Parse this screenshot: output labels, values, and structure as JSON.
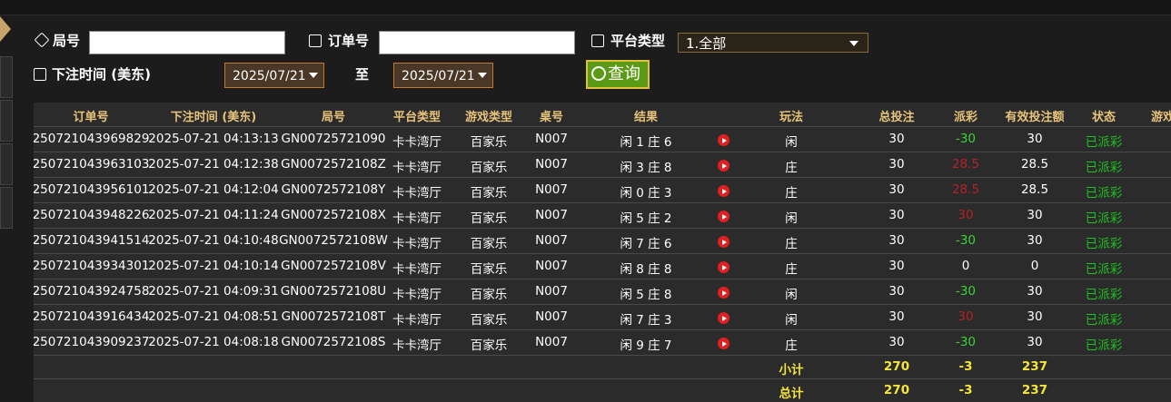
{
  "filters": {
    "round_label": "局号",
    "order_label": "订单号",
    "platform_label": "平台类型",
    "platform_value": "1.全部",
    "time_label": "下注时间 (美东)",
    "date_from": "2025/07/21",
    "to_label": "至",
    "date_to": "2025/07/21",
    "query_button": "查询"
  },
  "table": {
    "headers": [
      "订单号",
      "下注时间 (美东)",
      "局号",
      "平台类型",
      "游戏类型",
      "桌号",
      "结果",
      "玩法",
      "总投注",
      "派彩",
      "有效投注额",
      "状态",
      "游戏"
    ],
    "rows": [
      [
        "250721043969829",
        "2025-07-21 04:13:13",
        "GN00725721090",
        "卡卡湾厅",
        "百家乐",
        "N007",
        "闲 1 庄 6",
        "闲",
        "30",
        "-30",
        "30",
        "已派彩"
      ],
      [
        "250721043963103",
        "2025-07-21 04:12:38",
        "GN0072572108Z",
        "卡卡湾厅",
        "百家乐",
        "N007",
        "闲 3 庄 8",
        "庄",
        "30",
        "28.5",
        "28.5",
        "已派彩"
      ],
      [
        "250721043956101",
        "2025-07-21 04:12:04",
        "GN0072572108Y",
        "卡卡湾厅",
        "百家乐",
        "N007",
        "闲 0 庄 3",
        "庄",
        "30",
        "28.5",
        "28.5",
        "已派彩"
      ],
      [
        "250721043948226",
        "2025-07-21 04:11:24",
        "GN0072572108X",
        "卡卡湾厅",
        "百家乐",
        "N007",
        "闲 5 庄 2",
        "闲",
        "30",
        "30",
        "30",
        "已派彩"
      ],
      [
        "250721043941514",
        "2025-07-21 04:10:48",
        "GN0072572108W",
        "卡卡湾厅",
        "百家乐",
        "N007",
        "闲 7 庄 6",
        "庄",
        "30",
        "-30",
        "30",
        "已派彩"
      ],
      [
        "250721043934301",
        "2025-07-21 04:10:14",
        "GN0072572108V",
        "卡卡湾厅",
        "百家乐",
        "N007",
        "闲 8 庄 8",
        "庄",
        "30",
        "0",
        "0",
        "已派彩"
      ],
      [
        "250721043924758",
        "2025-07-21 04:09:31",
        "GN0072572108U",
        "卡卡湾厅",
        "百家乐",
        "N007",
        "闲 5 庄 8",
        "闲",
        "30",
        "-30",
        "30",
        "已派彩"
      ],
      [
        "250721043916434",
        "2025-07-21 04:08:51",
        "GN0072572108T",
        "卡卡湾厅",
        "百家乐",
        "N007",
        "闲 7 庄 3",
        "闲",
        "30",
        "30",
        "30",
        "已派彩"
      ],
      [
        "250721043909237",
        "2025-07-21 04:08:18",
        "GN0072572108S",
        "卡卡湾厅",
        "百家乐",
        "N007",
        "闲 9 庄 7",
        "庄",
        "30",
        "-30",
        "30",
        "已派彩"
      ]
    ],
    "subtotal": [
      "小计",
      "270",
      "-3",
      "237"
    ],
    "total": [
      "总计",
      "270",
      "-3",
      "237"
    ]
  }
}
